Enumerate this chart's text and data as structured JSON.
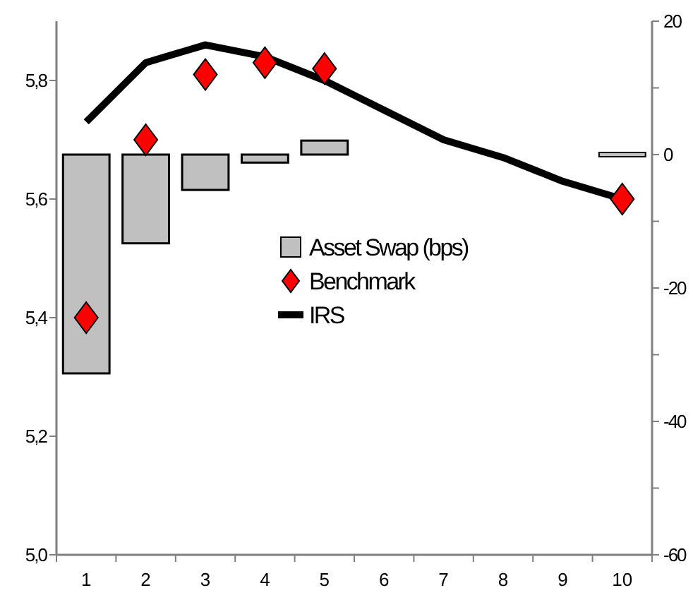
{
  "chart_data": {
    "type": "bar",
    "categories": [
      "1",
      "2",
      "3",
      "4",
      "5",
      "6",
      "7",
      "8",
      "9",
      "10"
    ],
    "series": [
      {
        "name": "Asset Swap (bps)",
        "axis": "y2",
        "color": "#c0c0c0",
        "values": [
          -32.8,
          -13.3,
          -5.3,
          -1.2,
          2.1,
          null,
          null,
          null,
          null,
          0
        ]
      },
      {
        "name": "Benchmark",
        "type": "scatter",
        "marker": "diamond",
        "color": "#ff0000",
        "values": [
          5.4,
          5.7,
          5.81,
          5.83,
          5.82,
          null,
          null,
          null,
          null,
          5.6
        ]
      },
      {
        "name": "IRS",
        "type": "line",
        "color": "#000000",
        "values": [
          5.73,
          5.83,
          5.86,
          5.84,
          5.8,
          5.75,
          5.7,
          5.67,
          5.63,
          5.6
        ]
      }
    ],
    "ylim": [
      5.0,
      5.9
    ],
    "yticks": [
      {
        "value": 5.0,
        "label": "5,0"
      },
      {
        "value": 5.2,
        "label": "5,2"
      },
      {
        "value": 5.4,
        "label": "5,4"
      },
      {
        "value": 5.6,
        "label": "5,6"
      },
      {
        "value": 5.8,
        "label": "5,8"
      }
    ],
    "y2lim": [
      -60,
      20
    ],
    "y2ticks": [
      -60,
      {
        "value": -50,
        "label": null
      },
      -40,
      {
        "value": -30,
        "label": null
      },
      -20,
      {
        "value": -10,
        "label": null
      },
      0,
      {
        "value": 10,
        "label": null
      },
      20
    ],
    "legend": "center",
    "grid": false
  }
}
